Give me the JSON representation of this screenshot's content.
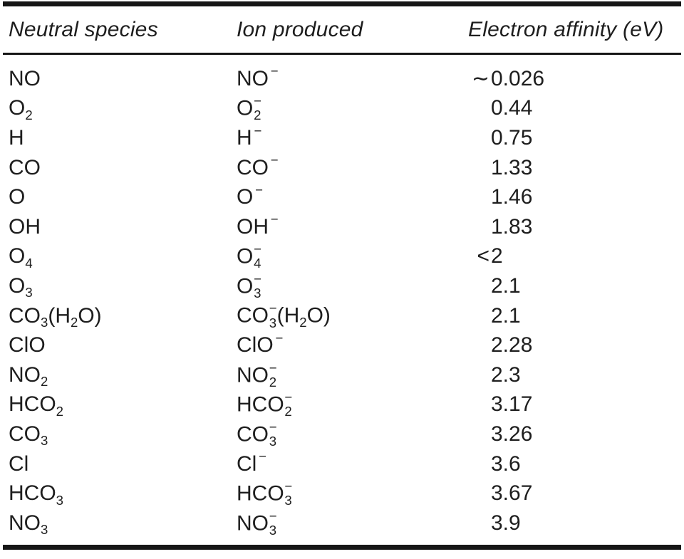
{
  "table": {
    "columns": [
      "Neutral species",
      "Ion produced",
      "Electron affinity (eV)"
    ],
    "rows": [
      {
        "neutral": [
          {
            "t": "NO"
          }
        ],
        "ion": [
          {
            "t": "NO"
          },
          {
            "sup": "−"
          }
        ],
        "ea": {
          "prefix": "∼",
          "num": "0.026"
        }
      },
      {
        "neutral": [
          {
            "t": "O"
          },
          {
            "sub": "2"
          }
        ],
        "ion": [
          {
            "t": "O"
          },
          {
            "sub": "2",
            "sup": "−"
          }
        ],
        "ea": {
          "prefix": "",
          "num": "0.44"
        }
      },
      {
        "neutral": [
          {
            "t": "H"
          }
        ],
        "ion": [
          {
            "t": "H"
          },
          {
            "sup": "−"
          }
        ],
        "ea": {
          "prefix": "",
          "num": "0.75"
        }
      },
      {
        "neutral": [
          {
            "t": "CO"
          }
        ],
        "ion": [
          {
            "t": "CO"
          },
          {
            "sup": "−"
          }
        ],
        "ea": {
          "prefix": "",
          "num": "1.33"
        }
      },
      {
        "neutral": [
          {
            "t": "O"
          }
        ],
        "ion": [
          {
            "t": "O"
          },
          {
            "sup": "−"
          }
        ],
        "ea": {
          "prefix": "",
          "num": "1.46"
        }
      },
      {
        "neutral": [
          {
            "t": "OH"
          }
        ],
        "ion": [
          {
            "t": "OH"
          },
          {
            "sup": "−"
          }
        ],
        "ea": {
          "prefix": "",
          "num": "1.83"
        }
      },
      {
        "neutral": [
          {
            "t": "O"
          },
          {
            "sub": "4"
          }
        ],
        "ion": [
          {
            "t": "O"
          },
          {
            "sub": "4",
            "sup": "−"
          }
        ],
        "ea": {
          "prefix": "<",
          "num": "2"
        }
      },
      {
        "neutral": [
          {
            "t": "O"
          },
          {
            "sub": "3"
          }
        ],
        "ion": [
          {
            "t": "O"
          },
          {
            "sub": "3",
            "sup": "−"
          }
        ],
        "ea": {
          "prefix": "",
          "num": "2.1"
        }
      },
      {
        "neutral": [
          {
            "t": "CO"
          },
          {
            "sub": "3"
          },
          {
            "t": "(H"
          },
          {
            "sub": "2"
          },
          {
            "t": "O)"
          }
        ],
        "ion": [
          {
            "t": "CO"
          },
          {
            "sub": "3",
            "sup": "−"
          },
          {
            "t": "(H"
          },
          {
            "sub": "2"
          },
          {
            "t": "O)"
          }
        ],
        "ea": {
          "prefix": "",
          "num": "2.1"
        }
      },
      {
        "neutral": [
          {
            "t": "ClO"
          }
        ],
        "ion": [
          {
            "t": "ClO"
          },
          {
            "sup": "−"
          }
        ],
        "ea": {
          "prefix": "",
          "num": "2.28"
        }
      },
      {
        "neutral": [
          {
            "t": "NO"
          },
          {
            "sub": "2"
          }
        ],
        "ion": [
          {
            "t": "NO"
          },
          {
            "sub": "2",
            "sup": "−"
          }
        ],
        "ea": {
          "prefix": "",
          "num": "2.3"
        }
      },
      {
        "neutral": [
          {
            "t": "HCO"
          },
          {
            "sub": "2"
          }
        ],
        "ion": [
          {
            "t": "HCO"
          },
          {
            "sub": "2",
            "sup": "−"
          }
        ],
        "ea": {
          "prefix": "",
          "num": "3.17"
        }
      },
      {
        "neutral": [
          {
            "t": "CO"
          },
          {
            "sub": "3"
          }
        ],
        "ion": [
          {
            "t": "CO"
          },
          {
            "sub": "3",
            "sup": "−"
          }
        ],
        "ea": {
          "prefix": "",
          "num": "3.26"
        }
      },
      {
        "neutral": [
          {
            "t": "Cl"
          }
        ],
        "ion": [
          {
            "t": "Cl"
          },
          {
            "sup": "−"
          }
        ],
        "ea": {
          "prefix": "",
          "num": "3.6"
        }
      },
      {
        "neutral": [
          {
            "t": "HCO"
          },
          {
            "sub": "3"
          }
        ],
        "ion": [
          {
            "t": "HCO"
          },
          {
            "sub": "3",
            "sup": "−"
          }
        ],
        "ea": {
          "prefix": "",
          "num": "3.67"
        }
      },
      {
        "neutral": [
          {
            "t": "NO"
          },
          {
            "sub": "3"
          }
        ],
        "ion": [
          {
            "t": "NO"
          },
          {
            "sub": "3",
            "sup": "−"
          }
        ],
        "ea": {
          "prefix": "",
          "num": "3.9"
        }
      }
    ]
  },
  "chart_data": {
    "type": "table",
    "title": "",
    "columns": [
      "Neutral species",
      "Ion produced",
      "Electron affinity (eV)"
    ],
    "rows_text": [
      [
        "NO",
        "NO⁻",
        "∼0.026"
      ],
      [
        "O₂",
        "O₂⁻",
        "0.44"
      ],
      [
        "H",
        "H⁻",
        "0.75"
      ],
      [
        "CO",
        "CO⁻",
        "1.33"
      ],
      [
        "O",
        "O⁻",
        "1.46"
      ],
      [
        "OH",
        "OH⁻",
        "1.83"
      ],
      [
        "O₄",
        "O₄⁻",
        "<2"
      ],
      [
        "O₃",
        "O₃⁻",
        "2.1"
      ],
      [
        "CO₃(H₂O)",
        "CO₃⁻(H₂O)",
        "2.1"
      ],
      [
        "ClO",
        "ClO⁻",
        "2.28"
      ],
      [
        "NO₂",
        "NO₂⁻",
        "2.3"
      ],
      [
        "HCO₂",
        "HCO₂⁻",
        "3.17"
      ],
      [
        "CO₃",
        "CO₃⁻",
        "3.26"
      ],
      [
        "Cl",
        "Cl⁻",
        "3.6"
      ],
      [
        "HCO₃",
        "HCO₃⁻",
        "3.67"
      ],
      [
        "NO₃",
        "NO₃⁻",
        "3.9"
      ]
    ],
    "colors": {
      "text": "#1e1e1e",
      "rule": "#161616",
      "background": "#ffffff"
    }
  }
}
